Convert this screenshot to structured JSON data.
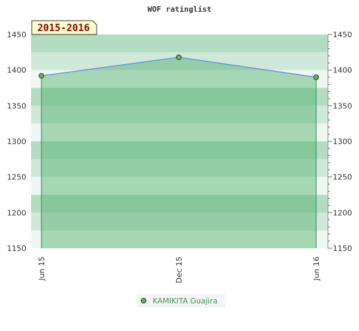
{
  "chart_data": {
    "type": "area",
    "title": "WOF ratinglist",
    "period_label": "2015-2016",
    "xlabel": "",
    "ylabel": "",
    "categories": [
      "Jun 15",
      "Dec 15",
      "Jun 16"
    ],
    "ylim": [
      1150,
      1450
    ],
    "yticks": [
      1150,
      1200,
      1250,
      1300,
      1350,
      1400,
      1450
    ],
    "grid": true,
    "legend_position": "bottom",
    "series": [
      {
        "name": "KAMIKITA Guajira",
        "values": [
          1392,
          1418,
          1390
        ]
      }
    ],
    "colors": {
      "line": "#6699dd",
      "fill": "#4caf6a",
      "marker": "#5cb85c",
      "legend_text": "#3a9a5a",
      "period_bg": "#ffffcc",
      "period_text": "#8b0000"
    }
  }
}
